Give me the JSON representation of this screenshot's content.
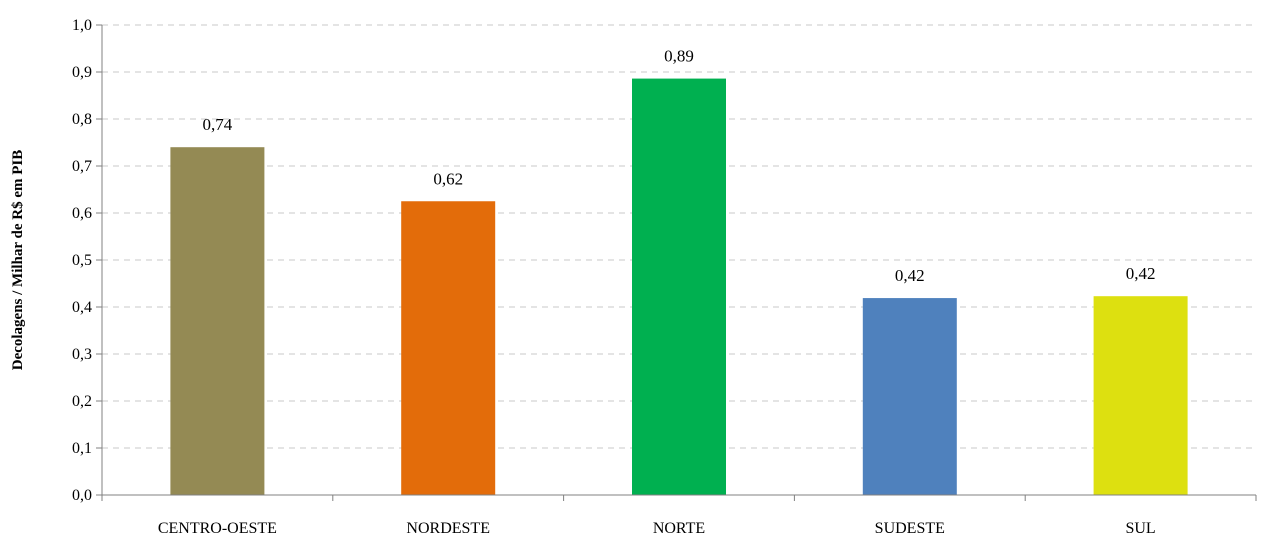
{
  "chart_data": {
    "type": "bar",
    "categories": [
      "CENTRO-OESTE",
      "NORDESTE",
      "NORTE",
      "SUDESTE",
      "SUL"
    ],
    "values": [
      0.74,
      0.625,
      0.886,
      0.419,
      0.423
    ],
    "data_labels": [
      "0,74",
      "0,62",
      "0,89",
      "0,42",
      "0,42"
    ],
    "colors": [
      "#948A54",
      "#E36C0A",
      "#00B050",
      "#4F81BD",
      "#DDE010"
    ],
    "title": "",
    "xlabel": "",
    "ylabel": "Decolagens / Milhar de R$ em PIB",
    "ylim": [
      0,
      1.0
    ],
    "yticks": [
      0.0,
      0.1,
      0.2,
      0.3,
      0.4,
      0.5,
      0.6,
      0.7,
      0.8,
      0.9,
      1.0
    ],
    "ytick_labels": [
      "0,0",
      "0,1",
      "0,2",
      "0,3",
      "0,4",
      "0,5",
      "0,6",
      "0,7",
      "0,8",
      "0,9",
      "1,0"
    ],
    "grid": true,
    "legend": "none"
  }
}
